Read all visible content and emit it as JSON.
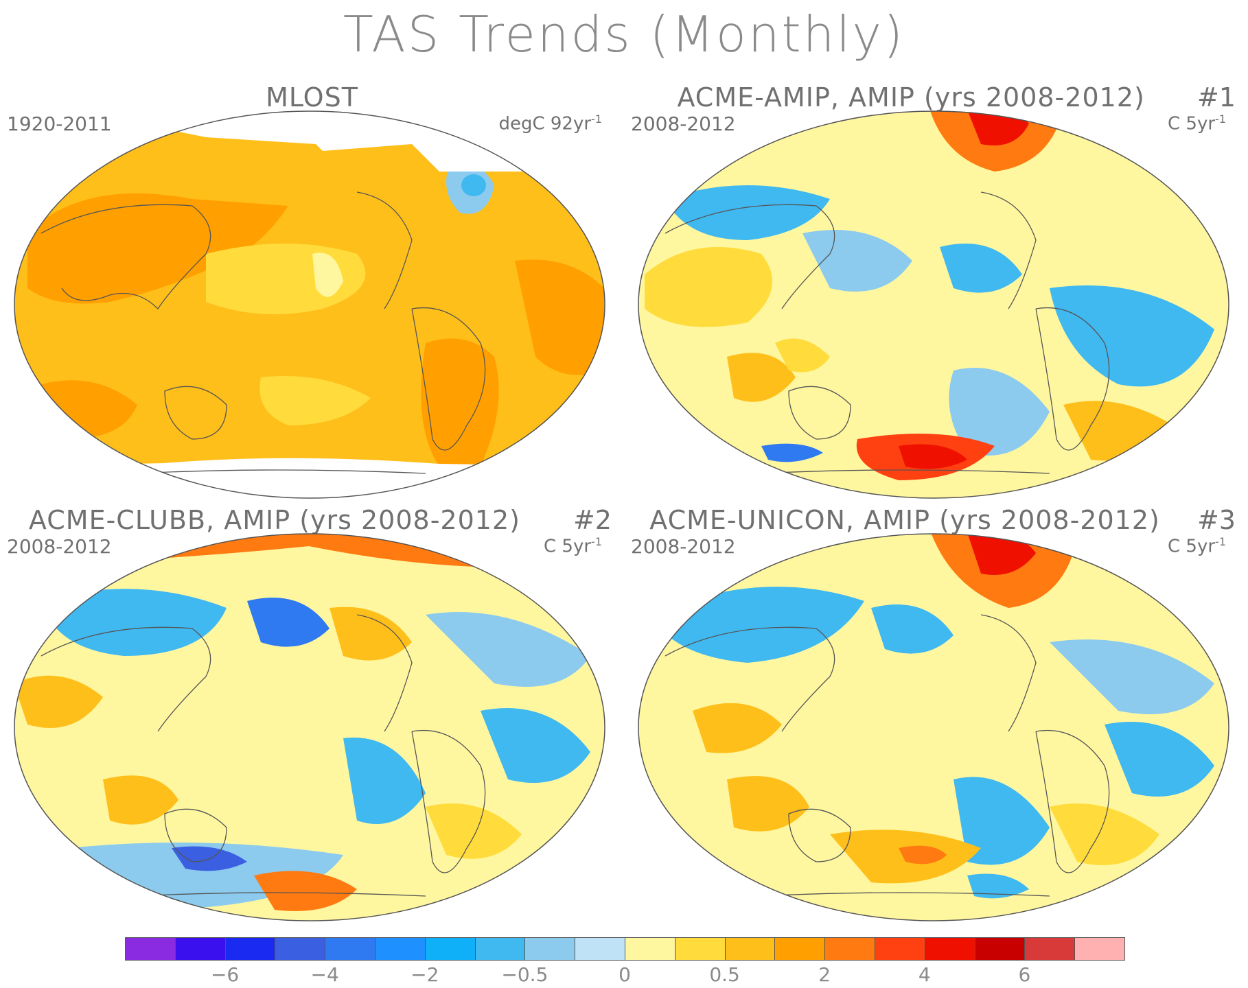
{
  "title": "TAS Trends (Monthly)",
  "panels": [
    {
      "id": "mlost",
      "title": "MLOST",
      "number": "",
      "period": "1920-2011",
      "units_base": "degC 92yr",
      "units_exp": "-1"
    },
    {
      "id": "acme-amip",
      "title": "ACME-AMIP, AMIP (yrs 2008-2012)",
      "number": "#1",
      "period": "2008-2012",
      "units_base": "C 5yr",
      "units_exp": "-1"
    },
    {
      "id": "acme-clubb",
      "title": "ACME-CLUBB, AMIP (yrs 2008-2012)",
      "number": "#2",
      "period": "2008-2012",
      "units_base": "C 5yr",
      "units_exp": "-1"
    },
    {
      "id": "acme-unicon",
      "title": "ACME-UNICON, AMIP (yrs 2008-2012)",
      "number": "#3",
      "period": "2008-2012",
      "units_base": "C 5yr",
      "units_exp": "-1"
    }
  ],
  "colorbar": {
    "colors": [
      "#8a2be2",
      "#3a10ee",
      "#1a2af0",
      "#3a5fe0",
      "#2f7af0",
      "#1e90ff",
      "#10b0f8",
      "#40b8f0",
      "#8ccbee",
      "#bfe2f6",
      "#fff7a0",
      "#ffdc3c",
      "#ffbf1a",
      "#ffa000",
      "#ff7a10",
      "#ff4010",
      "#f01000",
      "#c80000",
      "#d83a3a",
      "#ffb0b0"
    ],
    "labels": [
      {
        "text": "−6",
        "boundary": 2
      },
      {
        "text": "−4",
        "boundary": 4
      },
      {
        "text": "−2",
        "boundary": 6
      },
      {
        "text": "−0.5",
        "boundary": 8
      },
      {
        "text": "0",
        "boundary": 10
      },
      {
        "text": "0.5",
        "boundary": 12
      },
      {
        "text": "2",
        "boundary": 14
      },
      {
        "text": "4",
        "boundary": 16
      },
      {
        "text": "6",
        "boundary": 18
      }
    ]
  }
}
